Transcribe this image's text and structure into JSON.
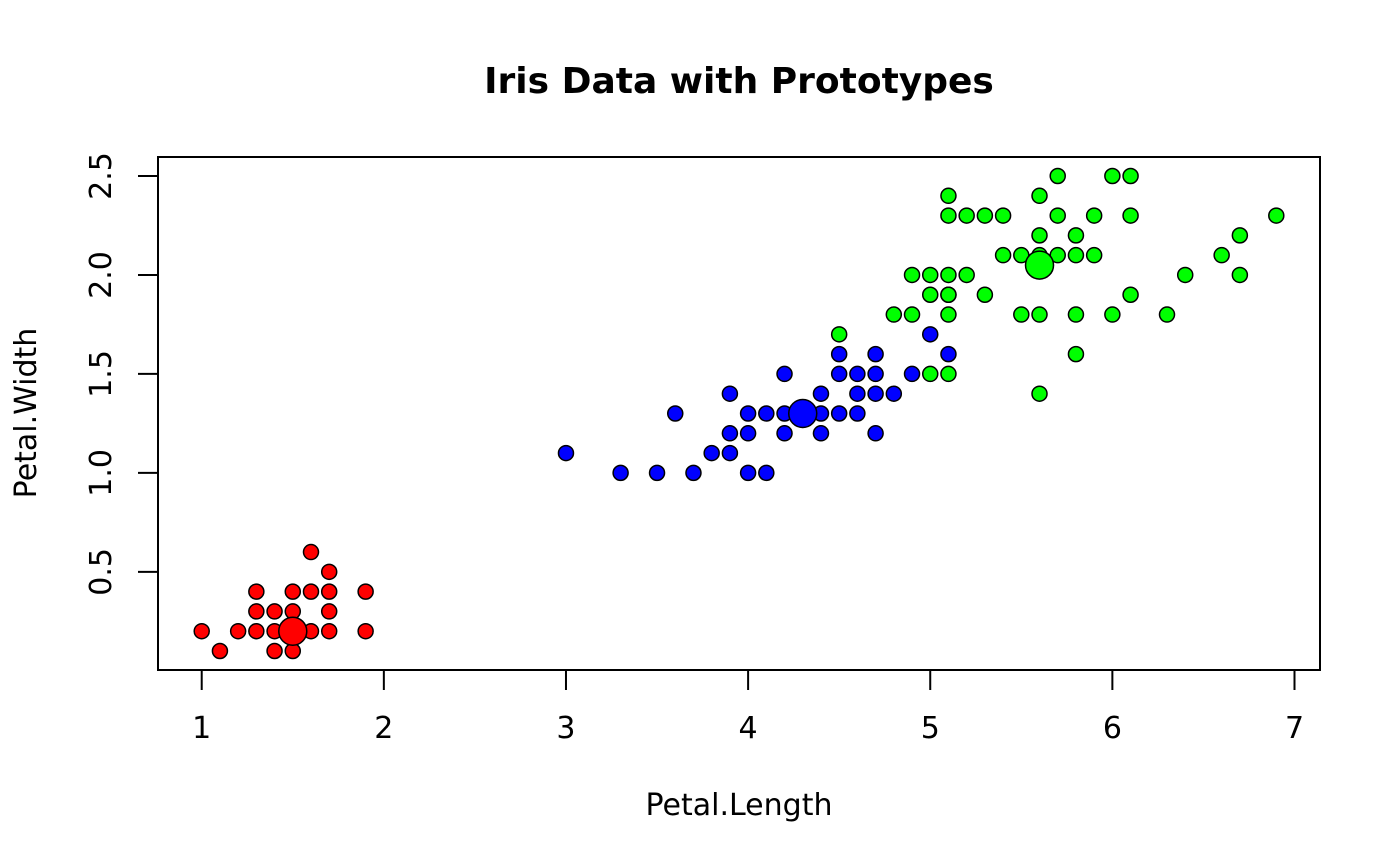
{
  "chart_data": {
    "type": "scatter",
    "title": "Iris Data with Prototypes",
    "xlabel": "Petal.Length",
    "ylabel": "Petal.Width",
    "xlim": [
      0.76,
      7.14
    ],
    "ylim": [
      0.004,
      2.596
    ],
    "x_ticks": [
      1,
      2,
      3,
      4,
      5,
      6,
      7
    ],
    "x_tick_labels": [
      "1",
      "2",
      "3",
      "4",
      "5",
      "6",
      "7"
    ],
    "y_ticks": [
      0.5,
      1.0,
      1.5,
      2.0,
      2.5
    ],
    "y_tick_labels": [
      "0.5",
      "1.0",
      "1.5",
      "2.0",
      "2.5"
    ],
    "grid": false,
    "series": [
      {
        "color": "#ff0000",
        "x": [
          1.0,
          1.1,
          1.2,
          1.3,
          1.3,
          1.3,
          1.4,
          1.4,
          1.4,
          1.5,
          1.5,
          1.5,
          1.5,
          1.6,
          1.6,
          1.6,
          1.7,
          1.7,
          1.7,
          1.7,
          1.9,
          1.9
        ],
        "y": [
          0.2,
          0.1,
          0.2,
          0.2,
          0.3,
          0.4,
          0.1,
          0.2,
          0.3,
          0.1,
          0.2,
          0.3,
          0.4,
          0.2,
          0.4,
          0.6,
          0.2,
          0.3,
          0.4,
          0.5,
          0.2,
          0.4
        ]
      },
      {
        "color": "#0000ff",
        "x": [
          3.0,
          3.3,
          3.5,
          3.6,
          3.7,
          3.8,
          3.9,
          3.9,
          3.9,
          4.0,
          4.0,
          4.0,
          4.1,
          4.1,
          4.2,
          4.2,
          4.2,
          4.3,
          4.4,
          4.4,
          4.4,
          4.5,
          4.5,
          4.5,
          4.6,
          4.6,
          4.6,
          4.7,
          4.7,
          4.7,
          4.7,
          4.8,
          4.9,
          5.0,
          5.1
        ],
        "y": [
          1.1,
          1.0,
          1.0,
          1.3,
          1.0,
          1.1,
          1.1,
          1.2,
          1.4,
          1.0,
          1.2,
          1.3,
          1.0,
          1.3,
          1.2,
          1.3,
          1.5,
          1.3,
          1.2,
          1.3,
          1.4,
          1.3,
          1.5,
          1.6,
          1.3,
          1.4,
          1.5,
          1.2,
          1.4,
          1.5,
          1.6,
          1.4,
          1.5,
          1.7,
          1.6
        ]
      },
      {
        "color": "#00ff00",
        "x": [
          4.5,
          4.8,
          4.9,
          4.9,
          5.0,
          5.0,
          5.0,
          5.1,
          5.1,
          5.1,
          5.1,
          5.1,
          5.1,
          5.1,
          5.2,
          5.2,
          5.3,
          5.3,
          5.4,
          5.4,
          5.5,
          5.5,
          5.6,
          5.6,
          5.6,
          5.6,
          5.6,
          5.7,
          5.7,
          5.7,
          5.8,
          5.8,
          5.8,
          5.8,
          5.9,
          5.9,
          6.0,
          6.0,
          6.1,
          6.1,
          6.1,
          6.3,
          6.4,
          6.6,
          6.7,
          6.7,
          6.9
        ],
        "y": [
          1.7,
          1.8,
          1.8,
          2.0,
          1.5,
          1.9,
          2.0,
          1.5,
          1.8,
          1.9,
          2.0,
          2.3,
          2.4,
          1.9,
          2.0,
          2.3,
          1.9,
          2.3,
          2.1,
          2.3,
          1.8,
          2.1,
          1.4,
          1.8,
          2.1,
          2.2,
          2.4,
          2.1,
          2.3,
          2.5,
          1.6,
          1.8,
          2.2,
          2.1,
          2.1,
          2.3,
          1.8,
          2.5,
          1.9,
          2.3,
          2.5,
          1.8,
          2.0,
          2.1,
          2.0,
          2.2,
          2.3
        ]
      }
    ],
    "prototypes": [
      {
        "color": "#ff0000",
        "x": 1.5,
        "y": 0.2
      },
      {
        "color": "#0000ff",
        "x": 4.3,
        "y": 1.3
      },
      {
        "color": "#00ff00",
        "x": 5.6,
        "y": 2.05
      }
    ]
  }
}
